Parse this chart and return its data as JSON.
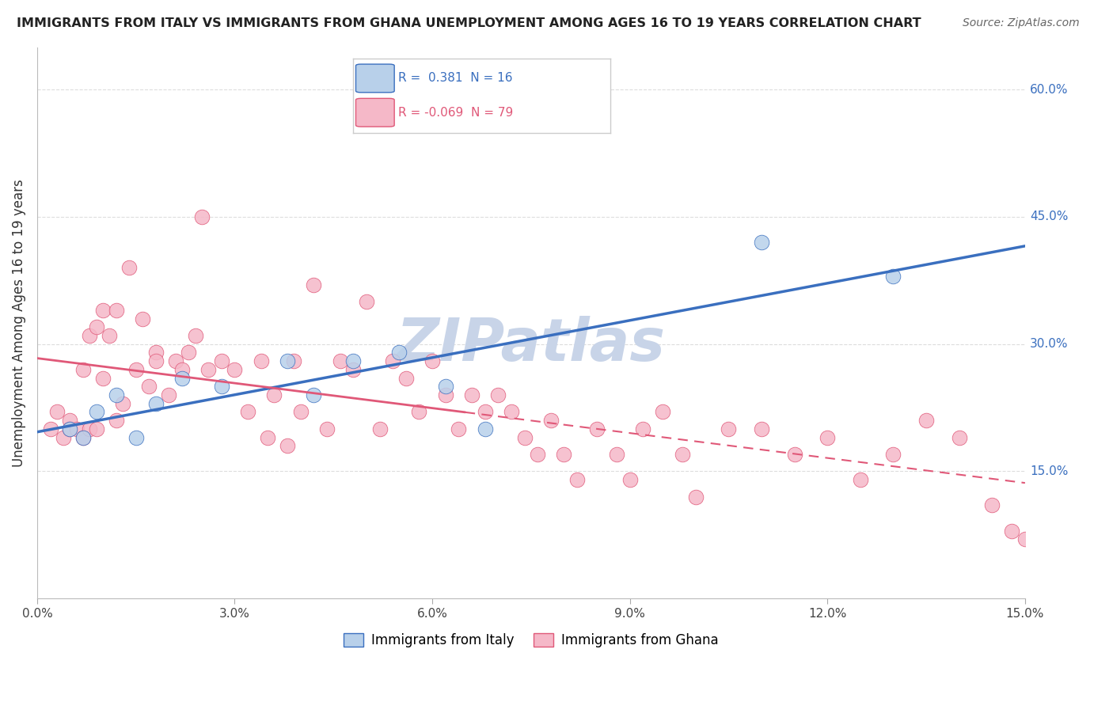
{
  "title": "IMMIGRANTS FROM ITALY VS IMMIGRANTS FROM GHANA UNEMPLOYMENT AMONG AGES 16 TO 19 YEARS CORRELATION CHART",
  "source": "Source: ZipAtlas.com",
  "ylabel": "Unemployment Among Ages 16 to 19 years",
  "ytick_labels": [
    "15.0%",
    "30.0%",
    "45.0%",
    "60.0%"
  ],
  "ytick_values": [
    0.15,
    0.3,
    0.45,
    0.6
  ],
  "xmin": 0.0,
  "xmax": 0.15,
  "ymin": 0.0,
  "ymax": 0.65,
  "italy_R": 0.381,
  "italy_N": 16,
  "ghana_R": -0.069,
  "ghana_N": 79,
  "italy_color": "#b8d0ea",
  "ghana_color": "#f5b8c8",
  "italy_line_color": "#3a6fbf",
  "ghana_line_color": "#e05878",
  "watermark_color": "#c8d4e8",
  "background_color": "#ffffff",
  "grid_color": "#dddddd",
  "legend_box_color": "#cccccc",
  "italy_x": [
    0.005,
    0.007,
    0.009,
    0.012,
    0.015,
    0.018,
    0.022,
    0.028,
    0.038,
    0.042,
    0.048,
    0.055,
    0.062,
    0.068,
    0.11,
    0.13
  ],
  "italy_y": [
    0.2,
    0.19,
    0.22,
    0.24,
    0.19,
    0.23,
    0.26,
    0.25,
    0.28,
    0.24,
    0.28,
    0.29,
    0.25,
    0.2,
    0.42,
    0.38
  ],
  "ghana_x": [
    0.002,
    0.003,
    0.004,
    0.005,
    0.005,
    0.006,
    0.007,
    0.007,
    0.008,
    0.008,
    0.009,
    0.009,
    0.01,
    0.01,
    0.011,
    0.012,
    0.012,
    0.013,
    0.014,
    0.015,
    0.016,
    0.017,
    0.018,
    0.018,
    0.02,
    0.021,
    0.022,
    0.023,
    0.024,
    0.025,
    0.026,
    0.028,
    0.03,
    0.032,
    0.034,
    0.035,
    0.036,
    0.038,
    0.039,
    0.04,
    0.042,
    0.044,
    0.046,
    0.048,
    0.05,
    0.052,
    0.054,
    0.056,
    0.058,
    0.06,
    0.062,
    0.064,
    0.066,
    0.068,
    0.07,
    0.072,
    0.074,
    0.076,
    0.078,
    0.08,
    0.082,
    0.085,
    0.088,
    0.09,
    0.092,
    0.095,
    0.098,
    0.1,
    0.105,
    0.11,
    0.115,
    0.12,
    0.125,
    0.13,
    0.135,
    0.14,
    0.145,
    0.148,
    0.15
  ],
  "ghana_y": [
    0.2,
    0.22,
    0.19,
    0.21,
    0.2,
    0.2,
    0.27,
    0.19,
    0.31,
    0.2,
    0.32,
    0.2,
    0.34,
    0.26,
    0.31,
    0.34,
    0.21,
    0.23,
    0.39,
    0.27,
    0.33,
    0.25,
    0.29,
    0.28,
    0.24,
    0.28,
    0.27,
    0.29,
    0.31,
    0.45,
    0.27,
    0.28,
    0.27,
    0.22,
    0.28,
    0.19,
    0.24,
    0.18,
    0.28,
    0.22,
    0.37,
    0.2,
    0.28,
    0.27,
    0.35,
    0.2,
    0.28,
    0.26,
    0.22,
    0.28,
    0.24,
    0.2,
    0.24,
    0.22,
    0.24,
    0.22,
    0.19,
    0.17,
    0.21,
    0.17,
    0.14,
    0.2,
    0.17,
    0.14,
    0.2,
    0.22,
    0.17,
    0.12,
    0.2,
    0.2,
    0.17,
    0.19,
    0.14,
    0.17,
    0.21,
    0.19,
    0.11,
    0.08,
    0.07
  ]
}
